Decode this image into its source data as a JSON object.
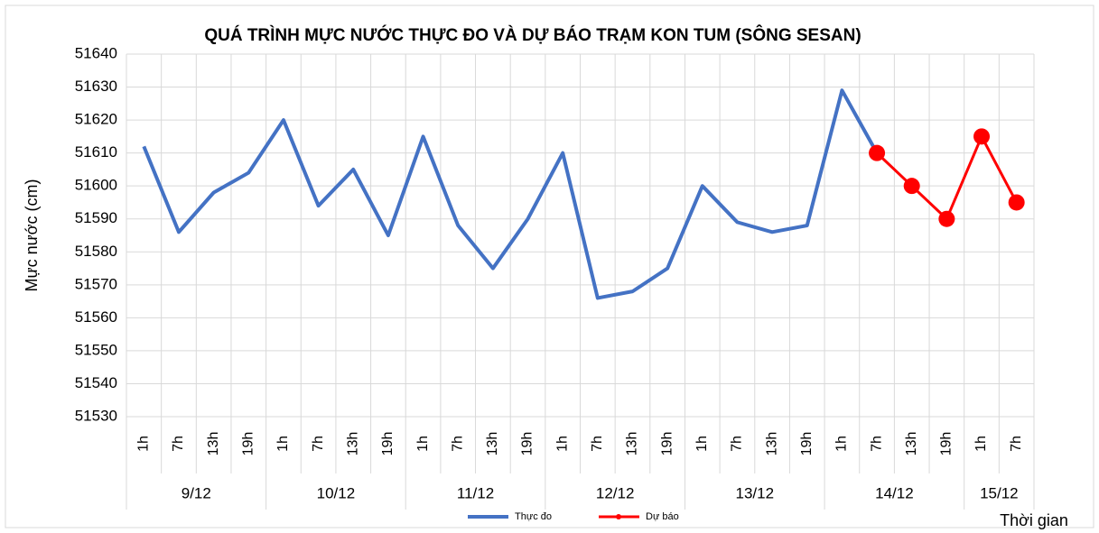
{
  "chart_data": {
    "type": "line",
    "title": "QUÁ TRÌNH MỰC NƯỚC THỰC ĐO VÀ DỰ BÁO TRẠM KON TUM (SÔNG SESAN)",
    "y_label": "Mực nước (cm)",
    "x_label": "Thời gian",
    "groups": [
      {
        "label": "9/12",
        "categories": [
          "1h",
          "7h",
          "13h",
          "19h"
        ]
      },
      {
        "label": "10/12",
        "categories": [
          "1h",
          "7h",
          "13h",
          "19h"
        ]
      },
      {
        "label": "11/12",
        "categories": [
          "1h",
          "7h",
          "13h",
          "19h"
        ]
      },
      {
        "label": "12/12",
        "categories": [
          "1h",
          "7h",
          "13h",
          "19h"
        ]
      },
      {
        "label": "13/12",
        "categories": [
          "1h",
          "7h",
          "13h",
          "19h"
        ]
      },
      {
        "label": "14/12",
        "categories": [
          "1h",
          "7h",
          "13h",
          "19h"
        ]
      },
      {
        "label": "15/12",
        "categories": [
          "1h",
          "7h"
        ]
      }
    ],
    "series": [
      {
        "name": "Thực đo",
        "color": "#4472c4",
        "markers": false,
        "values": [
          51612,
          51586,
          51598,
          51604,
          51620,
          51594,
          51605,
          51585,
          51615,
          51588,
          51575,
          51590,
          51610,
          51566,
          51568,
          51575,
          51600,
          51589,
          51586,
          51588,
          51629,
          51610,
          null,
          null,
          null,
          null
        ]
      },
      {
        "name": "Dự báo",
        "color": "#ff0000",
        "markers": true,
        "values": [
          null,
          null,
          null,
          null,
          null,
          null,
          null,
          null,
          null,
          null,
          null,
          null,
          null,
          null,
          null,
          null,
          null,
          null,
          null,
          null,
          null,
          51610,
          51600,
          51590,
          51615,
          51595
        ]
      }
    ],
    "ylim": [
      51530,
      51640
    ],
    "yticks": [
      51530,
      51540,
      51550,
      51560,
      51570,
      51580,
      51590,
      51600,
      51610,
      51620,
      51630,
      51640
    ],
    "grid": true
  }
}
